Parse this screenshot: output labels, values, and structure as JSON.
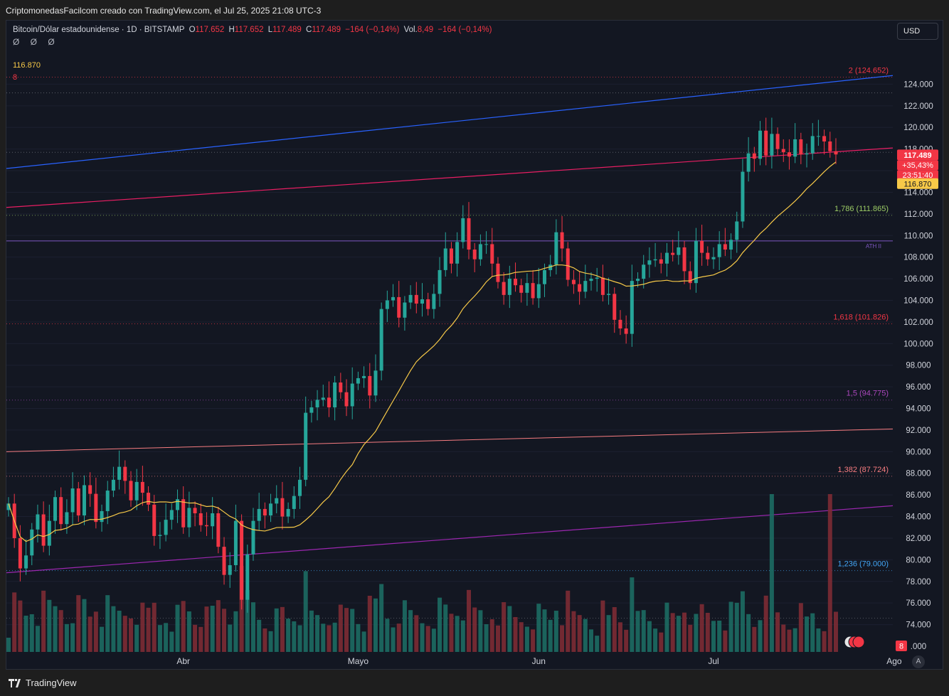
{
  "header": {
    "title": "CriptomonedasFacilcom creado con TradingView.com, el Jul 25, 2025 21:08 UTC-3"
  },
  "legend": {
    "symbol": "Bitcoin/Dólar estadounidense · 1D · BITSTAMP",
    "o_label": "O",
    "o_value": "117.652",
    "h_label": "H",
    "h_value": "117.652",
    "l_label": "L",
    "l_value": "117.489",
    "c_label": "C",
    "c_value": "117.489",
    "change": "−164 (−0,14%)",
    "vol_label": "Vol.",
    "vol_value": "8,49",
    "vol_change": "−164 (−0,14%)",
    "row2": "Ø Ø Ø",
    "ma_value": "116.870",
    "vol_small": "8"
  },
  "currency_button": "USD",
  "footer": {
    "brand": "TradingView",
    "auto": "A"
  },
  "colors": {
    "up": "#26a69a",
    "down": "#f23645",
    "ma": "#f7c948",
    "background": "#131722"
  },
  "chart_data": {
    "type": "candlestick",
    "title": "Bitcoin/Dólar estadounidense · 1D · BITSTAMP",
    "yrange": [
      72000,
      126000
    ],
    "yticks": [
      "124.000",
      "122.000",
      "120.000",
      "118.000",
      "114.000",
      "112.000",
      "110.000",
      "108.000",
      "106.000",
      "104.000",
      "102.000",
      "100.000",
      "98.000",
      "96.000",
      "94.000",
      "92.000",
      "90.000",
      "88.000",
      "86.000",
      "84.000",
      "82.000",
      "80.000",
      "78.000",
      "76.000",
      "74.000",
      ".000"
    ],
    "xticks": [
      {
        "label": "Abr",
        "day": 30
      },
      {
        "label": "Mayo",
        "day": 60
      },
      {
        "label": "Jun",
        "day": 91
      },
      {
        "label": "Jul",
        "day": 121
      },
      {
        "label": "Ago",
        "day": 152
      }
    ],
    "candles_close": [
      85200,
      82000,
      79200,
      80400,
      82800,
      84200,
      81300,
      83600,
      85800,
      83300,
      84400,
      86600,
      84100,
      86900,
      86100,
      83500,
      84500,
      86400,
      87400,
      88600,
      87300,
      85500,
      87200,
      86200,
      85100,
      82200,
      82300,
      83700,
      84600,
      85600,
      83000,
      84800,
      84300,
      83200,
      83100,
      84300,
      81200,
      78600,
      79500,
      83600,
      76300,
      80500,
      83600,
      84700,
      84100,
      85200,
      85700,
      84000,
      84700,
      85900,
      87400,
      93600,
      94100,
      94800,
      95000,
      94100,
      96400,
      95500,
      94200,
      96300,
      96800,
      97000,
      95200,
      97500,
      103200,
      104000,
      104300,
      102400,
      103800,
      104500,
      103700,
      104100,
      103200,
      104600,
      106800,
      108800,
      107400,
      109400,
      111600,
      108700,
      107800,
      109200,
      109200,
      107400,
      105700,
      104500,
      106000,
      105400,
      104700,
      105600,
      104200,
      105500,
      106800,
      107300,
      110300,
      108800,
      105900,
      105500,
      104800,
      105800,
      106000,
      106100,
      104500,
      104600,
      102200,
      101400,
      100900,
      105800,
      106000,
      107300,
      107700,
      107800,
      107400,
      108400,
      108200,
      108900,
      106700,
      105600,
      109500,
      108400,
      107800,
      108000,
      109200,
      108700,
      109600,
      111300,
      115900,
      117600,
      117100,
      119700,
      117400,
      119400,
      118000,
      117700,
      117300,
      118900,
      117500,
      117600,
      119200,
      119200,
      118700,
      117800,
      117500
    ],
    "moving_average": {
      "name": "MA",
      "last": "116.870"
    },
    "levels": [
      {
        "label": "2 (124.652)",
        "value": 124652,
        "color": "#f23645"
      },
      {
        "label": "1,786 (111.865)",
        "value": 111865,
        "color": "#9ccc65"
      },
      {
        "label": "1,618 (101.826)",
        "value": 101826,
        "color": "#f23645"
      },
      {
        "label": "1,5 (94.775)",
        "value": 94775,
        "color": "#ab47bc"
      },
      {
        "label": "1,382 (87.724)",
        "value": 87724,
        "color": "#f77c80"
      },
      {
        "label": "1,236 (79.000)",
        "value": 79000,
        "color": "#42a5f5"
      }
    ],
    "ath_label": "ATH II",
    "price_tags": [
      {
        "text": "117.489",
        "kind": "price"
      },
      {
        "text": "+35,43%",
        "kind": "change"
      },
      {
        "text": "23:51:40",
        "kind": "timer"
      },
      {
        "text": "116.870",
        "kind": "ma"
      },
      {
        "text": "8",
        "kind": "vol"
      }
    ]
  }
}
